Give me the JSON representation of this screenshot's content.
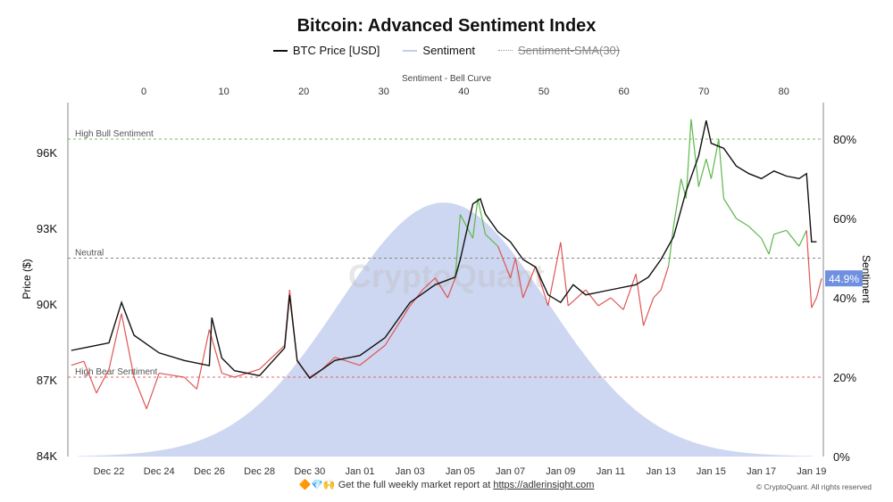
{
  "chart_data": {
    "type": "line",
    "title": "Bitcoin: Advanced Sentiment Index",
    "legend": [
      {
        "name": "BTC Price [USD]",
        "color": "#111111",
        "visible": true
      },
      {
        "name": "Sentiment",
        "color": "#c5cdee",
        "visible": true
      },
      {
        "name": "Sentiment-SMA(30)",
        "color": "#999999",
        "visible": false
      }
    ],
    "legend_position": "top",
    "top_axis": {
      "label": "Sentiment - Bell Curve",
      "ticks": [
        "0",
        "10",
        "20",
        "30",
        "40",
        "50",
        "60",
        "70",
        "80"
      ]
    },
    "left_axis": {
      "label": "Price ($)",
      "ticks": [
        "84K",
        "87K",
        "90K",
        "93K",
        "96K"
      ],
      "ylim": [
        84000,
        97700
      ]
    },
    "right_axis": {
      "label": "Sentiment",
      "ticks": [
        "0%",
        "20%",
        "40%",
        "60%",
        "80%"
      ],
      "ylim": [
        0,
        89
      ]
    },
    "x_ticks": [
      "Dec 22",
      "Dec 24",
      "Dec 26",
      "Dec 28",
      "Dec 30",
      "Jan 01",
      "Jan 03",
      "Jan 05",
      "Jan 07",
      "Jan 09",
      "Jan 11",
      "Jan 13",
      "Jan 15",
      "Jan 17",
      "Jan 19"
    ],
    "reference_lines": [
      {
        "label": "High Bull Sentiment",
        "value": 80,
        "color": "#6fbf5a"
      },
      {
        "label": "Neutral",
        "value": 50,
        "color": "#888888"
      },
      {
        "label": "High Bear Sentiment",
        "value": 20,
        "color": "#e06666"
      }
    ],
    "current_sentiment_label": "44.9%",
    "colors": {
      "bullish": "#5cb84a",
      "bearish": "#e05555",
      "bell": "#c9d3f0",
      "badge": "#6f8fe0"
    },
    "bell_curve": {
      "mean": 37.5,
      "sd": 13,
      "peak_sentiment_pct": 64
    },
    "price_series": {
      "dates": [
        "12-20.5",
        "12-21",
        "12-22",
        "12-22.5",
        "12-23",
        "12-24",
        "12-25",
        "12-26",
        "12-26.1",
        "12-26.5",
        "12-27",
        "12-28",
        "12-29",
        "12-29.2",
        "12-29.5",
        "12-30",
        "12-31",
        "01-01",
        "01-02",
        "01-03",
        "01-04",
        "01-04.8",
        "01-05",
        "01-05.5",
        "01-05.8",
        "01-06",
        "01-06.5",
        "01-07",
        "01-07.5",
        "01-08",
        "01-08.5",
        "01-09",
        "01-09.5",
        "01-10",
        "01-11",
        "01-12",
        "01-12.5",
        "01-13",
        "01-13.5",
        "01-14",
        "01-14.5",
        "01-14.8",
        "01-15",
        "01-15.5",
        "01-16",
        "01-16.5",
        "01-17",
        "01-17.5",
        "01-18",
        "01-18.5",
        "01-18.8",
        "01-19",
        "01-19.2"
      ],
      "values": [
        88200,
        88300,
        88500,
        90100,
        88800,
        88100,
        87800,
        87600,
        89500,
        87900,
        87400,
        87200,
        88300,
        90400,
        87800,
        87100,
        87800,
        88000,
        88700,
        90100,
        90800,
        91100,
        91800,
        94000,
        94200,
        93600,
        92900,
        92500,
        91800,
        91500,
        90400,
        90100,
        90800,
        90400,
        90600,
        90800,
        91100,
        91800,
        92700,
        94500,
        95900,
        97300,
        96400,
        96200,
        95500,
        95200,
        95000,
        95300,
        95100,
        95000,
        95200,
        92500,
        92500
      ]
    },
    "sentiment_series": {
      "dates": [
        "12-20.5",
        "12-21",
        "12-21.5",
        "12-22",
        "12-22.5",
        "12-23",
        "12-23.5",
        "12-24",
        "12-25",
        "12-25.5",
        "12-26",
        "12-26.5",
        "12-27",
        "12-28",
        "12-29",
        "12-29.2",
        "12-29.5",
        "12-30",
        "12-30.5",
        "12-31",
        "01-01",
        "01-02",
        "01-02.5",
        "01-03",
        "01-03.5",
        "01-04",
        "01-04.5",
        "01-04.8",
        "01-05",
        "01-05.5",
        "01-05.7",
        "01-06",
        "01-06.5",
        "01-07",
        "01-07.2",
        "01-07.5",
        "01-08",
        "01-08.5",
        "01-09",
        "01-09.3",
        "01-10",
        "01-10.5",
        "01-11",
        "01-11.5",
        "01-12",
        "01-12.3",
        "01-12.7",
        "01-13",
        "01-13.3",
        "01-13.5",
        "01-13.8",
        "01-14",
        "01-14.2",
        "01-14.5",
        "01-14.8",
        "01-15",
        "01-15.3",
        "01-15.5",
        "01-16",
        "01-16.5",
        "01-17",
        "01-17.3",
        "01-17.5",
        "01-18",
        "01-18.5",
        "01-18.8",
        "01-19",
        "01-19.2",
        "01-19.4"
      ],
      "values": [
        23,
        24,
        16,
        22,
        36,
        20,
        12,
        21,
        20,
        17,
        32,
        21,
        20,
        22,
        28,
        42,
        24,
        20,
        22,
        25,
        23,
        28,
        33,
        38,
        42,
        45,
        40,
        45,
        61,
        55,
        65,
        56,
        53,
        45,
        50,
        40,
        48,
        38,
        54,
        38,
        42,
        38,
        40,
        37,
        46,
        33,
        40,
        42,
        48,
        58,
        70,
        65,
        85,
        68,
        75,
        70,
        80,
        65,
        60,
        58,
        55,
        51,
        56,
        57,
        53,
        57,
        37.5,
        40,
        44.9
      ]
    }
  },
  "watermark": "CryptoQuant",
  "footer": {
    "emoji": "🔶💎🙌",
    "text": "Get the full weekly market report at",
    "link": "https://adlerinsight.com",
    "copyright": "© CryptoQuant. All rights reserved"
  }
}
